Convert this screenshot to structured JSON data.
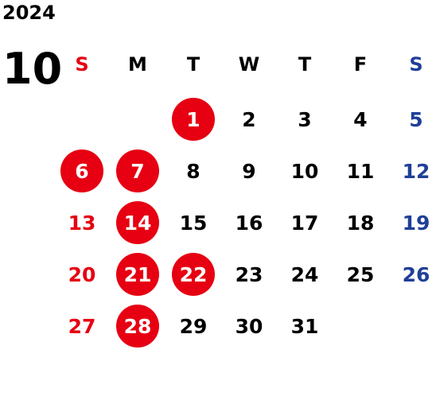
{
  "calendar": {
    "year": "2024",
    "month": "10",
    "weekday_headers": [
      "S",
      "M",
      "T",
      "W",
      "T",
      "F",
      "S"
    ],
    "weeks": [
      [
        null,
        null,
        "1",
        "2",
        "3",
        "4",
        "5"
      ],
      [
        "6",
        "7",
        "8",
        "9",
        "10",
        "11",
        "12"
      ],
      [
        "13",
        "14",
        "15",
        "16",
        "17",
        "18",
        "19"
      ],
      [
        "20",
        "21",
        "22",
        "23",
        "24",
        "25",
        "26"
      ],
      [
        "27",
        "28",
        "29",
        "30",
        "31",
        null,
        null
      ]
    ],
    "highlighted_days": [
      "1",
      "6",
      "7",
      "14",
      "21",
      "22",
      "28"
    ]
  },
  "colors": {
    "sunday": "#e60012",
    "saturday": "#1f3f97",
    "weekday": "#000000",
    "highlight_circle": "#e60012",
    "highlight_text": "#ffffff"
  }
}
